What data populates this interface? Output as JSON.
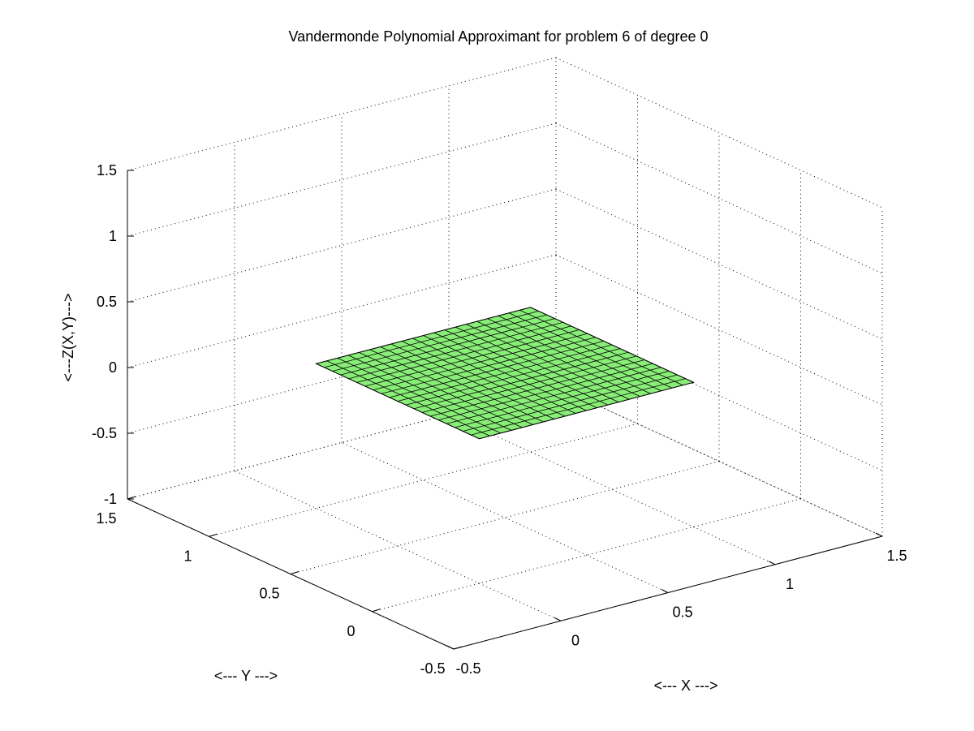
{
  "chart_data": {
    "type": "surface",
    "title": "Vandermonde Polynomial Approximant for problem 6 of degree 0",
    "xlabel": "<--- X --->",
    "ylabel": "<--- Y --->",
    "zlabel": "<---Z(X,Y)--->",
    "xlim": [
      -0.5,
      1.5
    ],
    "ylim": [
      -0.5,
      1.5
    ],
    "zlim": [
      -1,
      1.5
    ],
    "x_ticks": [
      -0.5,
      0,
      0.5,
      1,
      1.5
    ],
    "y_ticks": [
      -0.5,
      0,
      0.5,
      1,
      1.5
    ],
    "z_ticks": [
      -1,
      -0.5,
      0,
      0.5,
      1,
      1.5
    ],
    "x_tick_labels": [
      "-0.5",
      "0",
      "0.5",
      "1",
      "1.5"
    ],
    "y_tick_labels": [
      "-0.5",
      "0",
      "0.5",
      "1",
      "1.5"
    ],
    "z_tick_labels": [
      "-1",
      "-0.5",
      "0",
      "0.5",
      "1",
      "1.5"
    ],
    "surface": {
      "x_range": [
        0,
        1
      ],
      "y_range": [
        0,
        1
      ],
      "z_value": 0.1,
      "grid_divisions": 20,
      "color": "#88ee77"
    },
    "grid": true
  }
}
